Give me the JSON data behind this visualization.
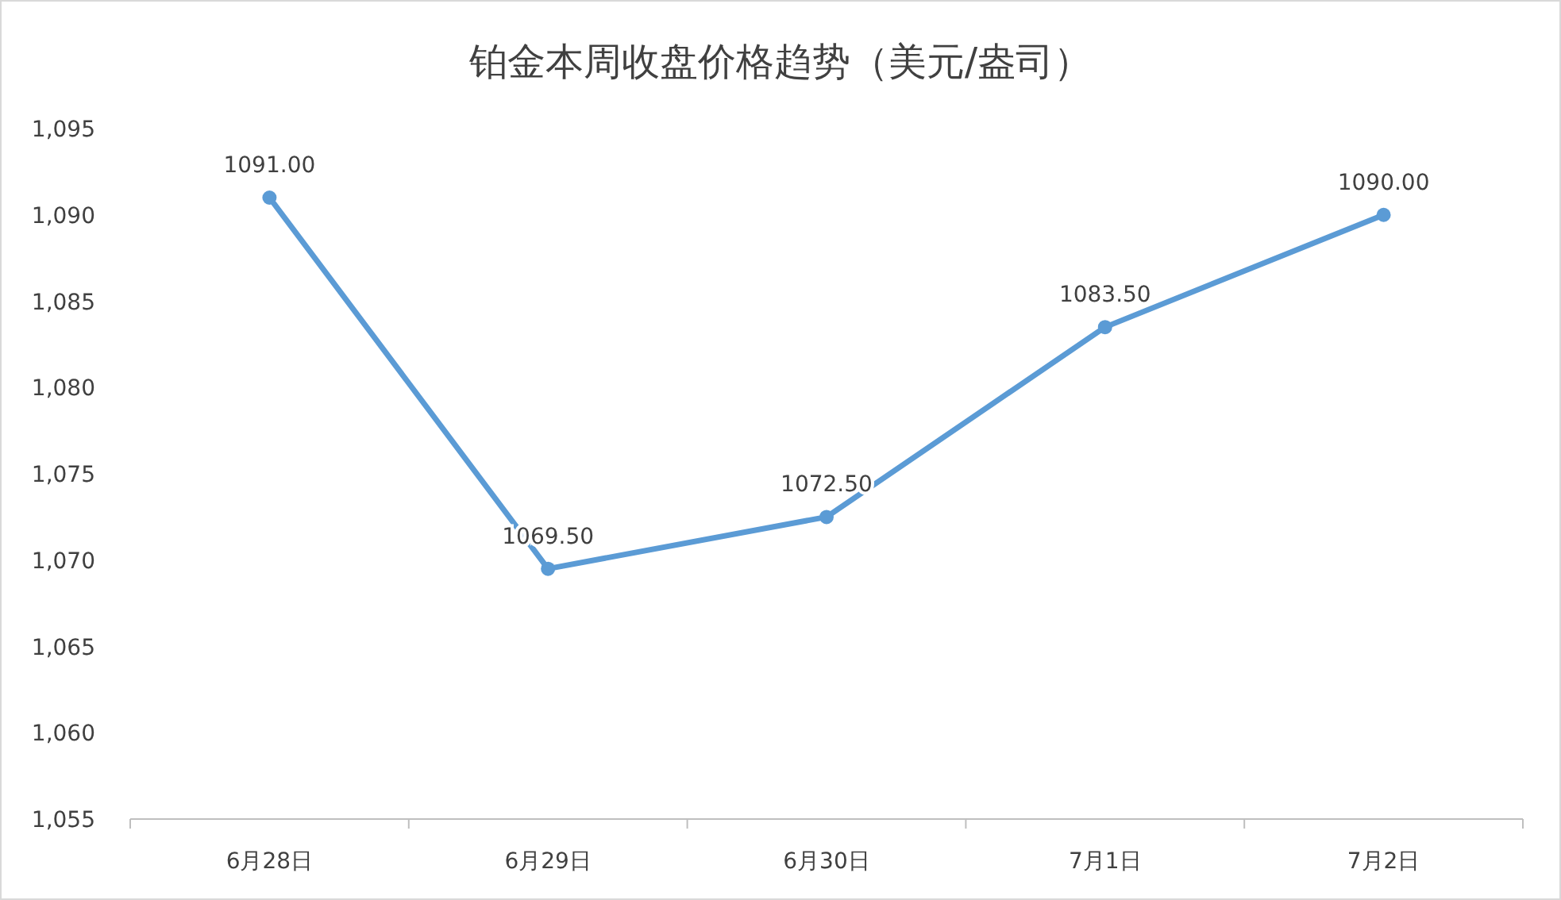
{
  "chart_data": {
    "type": "line",
    "title": "铂金本周收盘价格趋势（美元/盎司）",
    "categories": [
      "6月28日",
      "6月29日",
      "6月30日",
      "7月1日",
      "7月2日"
    ],
    "series": [
      {
        "color": "#5b9bd5",
        "values": [
          1091,
          1069.5,
          1072.5,
          1083.5,
          1090
        ],
        "value_labels": [
          "1091.00",
          "1069.50",
          "1072.50",
          "1083.50",
          "1090.00"
        ]
      }
    ],
    "ylim": [
      1055,
      1095
    ],
    "yticks": [
      {
        "value": 1055,
        "label": "1,055"
      },
      {
        "value": 1060,
        "label": "1,060"
      },
      {
        "value": 1065,
        "label": "1,065"
      },
      {
        "value": 1070,
        "label": "1,070"
      },
      {
        "value": 1075,
        "label": "1,075"
      },
      {
        "value": 1080,
        "label": "1,080"
      },
      {
        "value": 1085,
        "label": "1,085"
      },
      {
        "value": 1090,
        "label": "1,090"
      },
      {
        "value": 1095,
        "label": "1,095"
      }
    ],
    "marker": "circle",
    "line_style": "solid",
    "grid": false
  }
}
